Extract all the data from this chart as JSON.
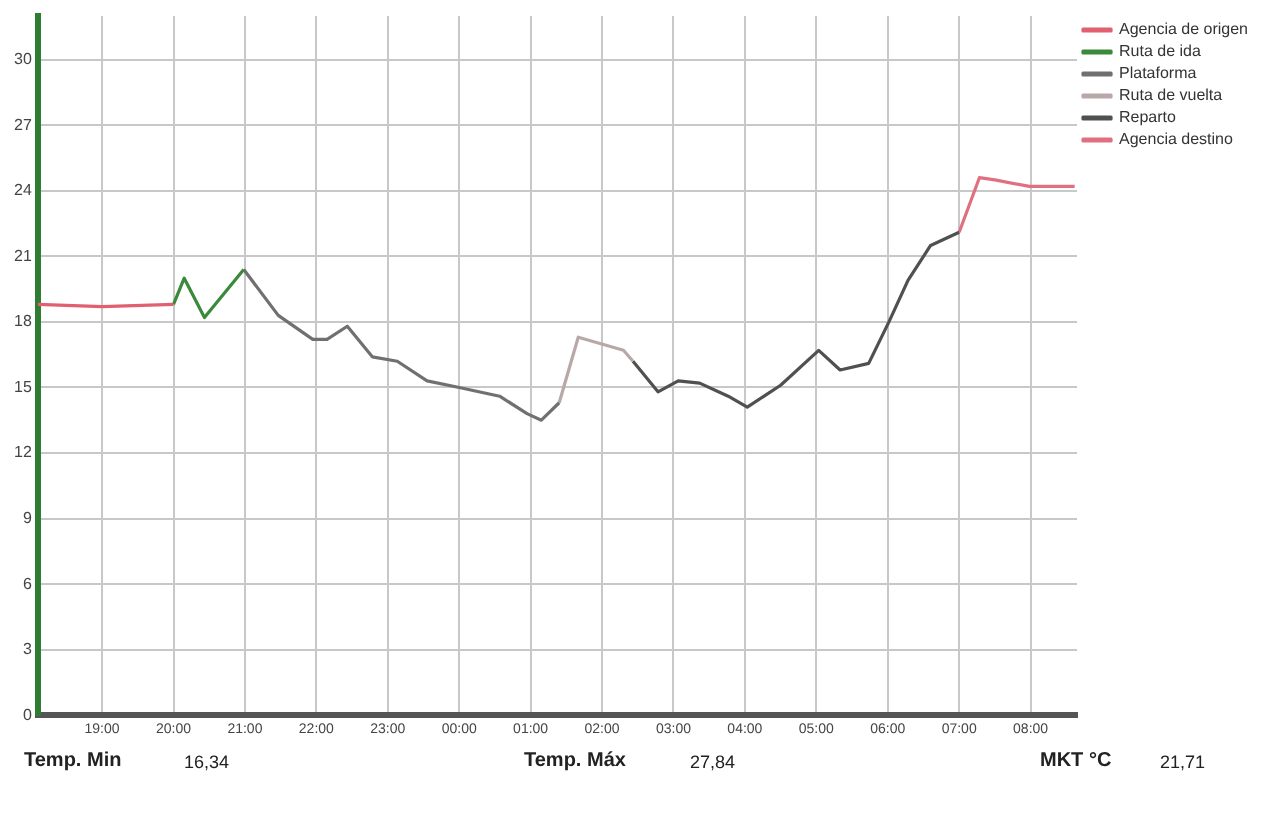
{
  "chart_data": {
    "type": "line",
    "series": [
      {
        "name": "Agencia de origen",
        "color": "#e06070",
        "x": [
          "2000-01-01T18:06",
          "2000-01-01T19:00",
          "2000-01-01T20:00"
        ],
        "values": [
          18.8,
          18.7,
          18.8
        ]
      },
      {
        "name": "Ruta de ida",
        "color": "#3a8a3a",
        "x": [
          "2000-01-01T20:00",
          "2000-01-01T20:09",
          "2000-01-01T20:26",
          "2000-01-01T20:59"
        ],
        "values": [
          18.8,
          20.0,
          18.2,
          20.4
        ]
      },
      {
        "name": "Plataforma",
        "color": "#707070",
        "x": [
          "2000-01-01T20:59",
          "2000-01-01T21:28",
          "2000-01-01T21:57",
          "2000-01-01T22:09",
          "2000-01-01T22:26",
          "2000-01-01T22:47",
          "2000-01-01T23:08",
          "2000-01-01T23:33",
          "2000-01-02T00:00",
          "2000-01-02T00:34",
          "2000-01-02T00:57",
          "2000-01-02T01:09",
          "2000-01-02T01:24"
        ],
        "values": [
          20.4,
          18.3,
          17.2,
          17.2,
          17.8,
          16.4,
          16.2,
          15.3,
          15.0,
          14.6,
          13.8,
          13.5,
          14.3
        ]
      },
      {
        "name": "Ruta de vuelta",
        "color": "#b8a8a8",
        "x": [
          "2000-01-02T01:24",
          "2000-01-02T01:40",
          "2000-01-02T02:18",
          "2000-01-02T02:26"
        ],
        "values": [
          14.3,
          17.3,
          16.7,
          16.2
        ]
      },
      {
        "name": "Reparto",
        "color": "#505050",
        "x": [
          "2000-01-02T02:26",
          "2000-01-02T02:47",
          "2000-01-02T03:04",
          "2000-01-02T03:22",
          "2000-01-02T03:46",
          "2000-01-02T04:02",
          "2000-01-02T04:30",
          "2000-01-02T05:02",
          "2000-01-02T05:20",
          "2000-01-02T05:44",
          "2000-01-02T06:01",
          "2000-01-02T06:17",
          "2000-01-02T06:36",
          "2000-01-02T07:00"
        ],
        "values": [
          16.2,
          14.8,
          15.3,
          15.2,
          14.6,
          14.1,
          15.1,
          16.7,
          15.8,
          16.1,
          18.0,
          19.9,
          21.5,
          22.1
        ]
      },
      {
        "name": "Agencia destino",
        "color": "#e07080",
        "x": [
          "2000-01-02T07:00",
          "2000-01-02T07:17",
          "2000-01-02T07:30",
          "2000-01-02T07:59",
          "2000-01-02T08:37"
        ],
        "values": [
          22.1,
          24.6,
          24.5,
          24.2,
          24.2
        ]
      }
    ],
    "xlim": [
      "2000-01-01T18:06",
      "2000-01-02T08:39"
    ],
    "xticks": [
      {
        "value": "2000-01-01T19:00",
        "label": "19:00"
      },
      {
        "value": "2000-01-01T20:00",
        "label": "20:00"
      },
      {
        "value": "2000-01-01T21:00",
        "label": "21:00"
      },
      {
        "value": "2000-01-01T22:00",
        "label": "22:00"
      },
      {
        "value": "2000-01-01T23:00",
        "label": "23:00"
      },
      {
        "value": "2000-01-02T00:00",
        "label": "00:00"
      },
      {
        "value": "2000-01-02T01:00",
        "label": "01:00"
      },
      {
        "value": "2000-01-02T02:00",
        "label": "02:00"
      },
      {
        "value": "2000-01-02T03:00",
        "label": "03:00"
      },
      {
        "value": "2000-01-02T04:00",
        "label": "04:00"
      },
      {
        "value": "2000-01-02T05:00",
        "label": "05:00"
      },
      {
        "value": "2000-01-02T06:00",
        "label": "06:00"
      },
      {
        "value": "2000-01-02T07:00",
        "label": "07:00"
      },
      {
        "value": "2000-01-02T08:00",
        "label": "08:00"
      }
    ],
    "ylim": [
      0,
      32
    ],
    "yticks": [
      0,
      3,
      6,
      9,
      12,
      15,
      18,
      21,
      24,
      27,
      30
    ],
    "grid": true,
    "legend": "top right",
    "annotations": [
      "Temp. Min",
      "16,34",
      "Temp. Máx",
      "27,84",
      "MKT °C",
      "21,71"
    ]
  }
}
